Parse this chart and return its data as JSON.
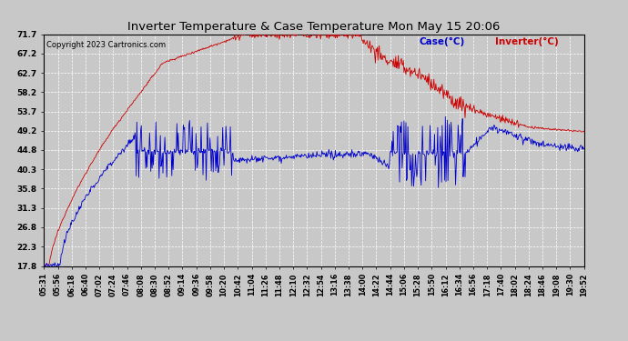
{
  "title": "Inverter Temperature & Case Temperature Mon May 15 20:06",
  "copyright": "Copyright 2023 Cartronics.com",
  "legend_case": "Case(°C)",
  "legend_inverter": "Inverter(°C)",
  "background_color": "#c8c8c8",
  "plot_bg_color": "#c8c8c8",
  "grid_color": "#ffffff",
  "case_color": "#0000cc",
  "inverter_color": "#cc0000",
  "yticks": [
    17.8,
    22.3,
    26.8,
    31.3,
    35.8,
    40.3,
    44.8,
    49.2,
    53.7,
    58.2,
    62.7,
    67.2,
    71.7
  ],
  "ymin": 17.8,
  "ymax": 71.7,
  "xtick_labels": [
    "05:31",
    "05:56",
    "06:18",
    "06:40",
    "07:02",
    "07:24",
    "07:46",
    "08:08",
    "08:30",
    "08:52",
    "09:14",
    "09:36",
    "09:58",
    "10:20",
    "10:42",
    "11:04",
    "11:26",
    "11:48",
    "12:10",
    "12:32",
    "12:54",
    "13:16",
    "13:38",
    "14:00",
    "14:22",
    "14:44",
    "15:06",
    "15:28",
    "15:50",
    "16:12",
    "16:34",
    "16:56",
    "17:18",
    "17:40",
    "18:02",
    "18:24",
    "18:46",
    "19:08",
    "19:30",
    "19:52"
  ]
}
